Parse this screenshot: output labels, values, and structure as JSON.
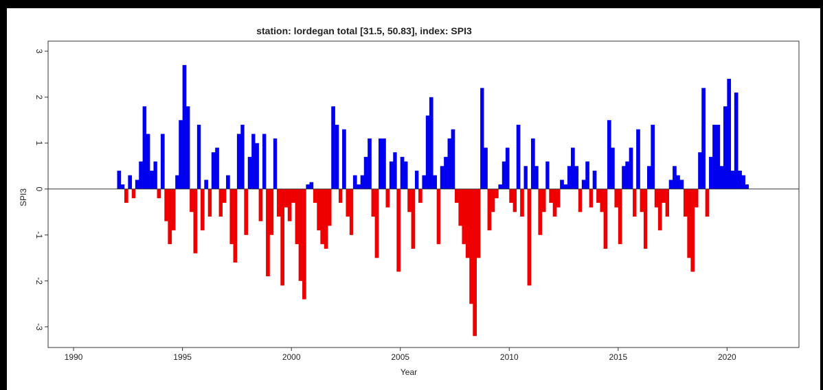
{
  "chart_data": {
    "type": "bar",
    "title": "station: lordegan total [31.5, 50.83], index: SPI3",
    "x_label": "Year",
    "y_label": "SPI3",
    "x": [
      1992,
      1992.17,
      1992.33,
      1992.5,
      1992.67,
      1992.83,
      1993,
      1993.17,
      1993.33,
      1993.5,
      1993.67,
      1993.83,
      1994,
      1994.17,
      1994.33,
      1994.5,
      1994.67,
      1994.83,
      1995,
      1995.17,
      1995.33,
      1995.5,
      1995.67,
      1995.83,
      1996,
      1996.17,
      1996.33,
      1996.5,
      1996.67,
      1996.83,
      1997,
      1997.17,
      1997.33,
      1997.5,
      1997.67,
      1997.83,
      1998,
      1998.17,
      1998.33,
      1998.5,
      1998.67,
      1998.83,
      1999,
      1999.17,
      1999.33,
      1999.5,
      1999.67,
      1999.83,
      2000,
      2000.17,
      2000.33,
      2000.5,
      2000.67,
      2000.83,
      2001,
      2001.17,
      2001.33,
      2001.5,
      2001.67,
      2001.83,
      2002,
      2002.17,
      2002.33,
      2002.5,
      2002.67,
      2002.83,
      2003,
      2003.17,
      2003.33,
      2003.5,
      2003.67,
      2003.83,
      2004,
      2004.17,
      2004.33,
      2004.5,
      2004.67,
      2004.83,
      2005,
      2005.17,
      2005.33,
      2005.5,
      2005.67,
      2005.83,
      2006,
      2006.17,
      2006.33,
      2006.5,
      2006.67,
      2006.83,
      2007,
      2007.17,
      2007.33,
      2007.5,
      2007.67,
      2007.83,
      2008,
      2008.17,
      2008.33,
      2008.5,
      2008.67,
      2008.83,
      2009,
      2009.17,
      2009.33,
      2009.5,
      2009.67,
      2009.83,
      2010,
      2010.17,
      2010.33,
      2010.5,
      2010.67,
      2010.83,
      2011,
      2011.17,
      2011.33,
      2011.5,
      2011.67,
      2011.83,
      2012,
      2012.17,
      2012.33,
      2012.5,
      2012.67,
      2012.83,
      2013,
      2013.17,
      2013.33,
      2013.5,
      2013.67,
      2013.83,
      2014,
      2014.17,
      2014.33,
      2014.5,
      2014.67,
      2014.83,
      2015,
      2015.17,
      2015.33,
      2015.5,
      2015.67,
      2015.83,
      2016,
      2016.17,
      2016.33,
      2016.5,
      2016.67,
      2016.83,
      2017,
      2017.17,
      2017.33,
      2017.5,
      2017.67,
      2017.83,
      2018,
      2018.17,
      2018.33,
      2018.5,
      2018.67,
      2018.83,
      2019,
      2019.17,
      2019.33,
      2019.5,
      2019.67,
      2019.83,
      2020,
      2020.17,
      2020.33,
      2020.5,
      2020.67,
      2020.83
    ],
    "values": [
      0.4,
      0.1,
      -0.3,
      0.3,
      -0.2,
      0.2,
      0.6,
      1.8,
      1.2,
      0.4,
      0.6,
      -0.2,
      1.2,
      -0.7,
      -1.2,
      -0.9,
      0.3,
      1.5,
      2.7,
      1.8,
      -0.5,
      -1.4,
      1.4,
      -0.9,
      0.2,
      -0.6,
      0.8,
      0.9,
      -0.6,
      -0.3,
      0.3,
      -1.2,
      -1.6,
      1.2,
      1.4,
      -1.0,
      0.7,
      1.2,
      1.0,
      -0.7,
      1.2,
      -1.9,
      -1.0,
      1.1,
      -0.6,
      -2.1,
      -0.4,
      -0.7,
      -0.3,
      -1.2,
      -2.0,
      -2.4,
      0.1,
      0.15,
      -0.3,
      -0.9,
      -1.2,
      -1.3,
      -0.8,
      1.8,
      1.4,
      -0.3,
      1.3,
      -0.6,
      -1.0,
      0.3,
      0.1,
      0.3,
      0.7,
      1.1,
      -0.6,
      -1.5,
      1.1,
      1.1,
      -0.4,
      0.6,
      0.8,
      -1.8,
      0.7,
      0.6,
      -0.5,
      -1.3,
      0.4,
      -0.3,
      0.3,
      1.6,
      2.0,
      0.3,
      -1.2,
      0.5,
      0.7,
      1.1,
      1.3,
      -0.3,
      -0.8,
      -1.2,
      -1.5,
      -2.5,
      -3.2,
      -1.5,
      2.2,
      0.9,
      -0.9,
      -0.5,
      -0.2,
      0.1,
      0.6,
      0.9,
      -0.3,
      -0.5,
      1.4,
      -0.6,
      0.5,
      -2.1,
      1.1,
      0.5,
      -1.0,
      -0.5,
      0.6,
      -0.3,
      -0.6,
      -0.4,
      0.2,
      0.1,
      0.5,
      0.9,
      0.5,
      -0.5,
      0.2,
      0.6,
      -0.4,
      0.4,
      -0.3,
      -0.5,
      -1.3,
      1.5,
      0.9,
      -0.4,
      -1.2,
      0.5,
      0.6,
      0.9,
      -0.6,
      1.3,
      -0.5,
      -1.3,
      0.5,
      1.4,
      -0.4,
      -0.9,
      -0.3,
      -0.6,
      0.2,
      0.5,
      0.3,
      0.2,
      -0.6,
      -1.5,
      -1.8,
      -0.4,
      0.8,
      2.2,
      -0.6,
      0.7,
      1.4,
      1.4,
      0.5,
      1.8,
      2.4,
      0.4,
      2.1,
      0.4,
      0.3,
      0.1
    ],
    "pos_color": "#0000ee",
    "neg_color": "#ee0000",
    "xlim": [
      1988.83,
      2023.3
    ],
    "ylim": [
      -3.45,
      3.22
    ],
    "xticks": [
      1990,
      1995,
      2000,
      2005,
      2010,
      2015,
      2020
    ],
    "yticks": [
      -3,
      -2,
      -1,
      0,
      1,
      2,
      3
    ]
  }
}
